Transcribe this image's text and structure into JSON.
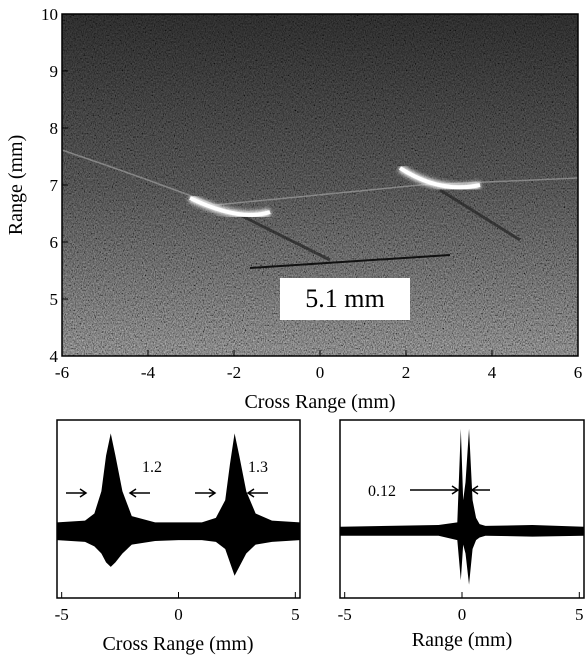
{
  "chart_data": [
    {
      "type": "image",
      "xlabel": "Cross Range (mm)",
      "ylabel": "Range (mm)",
      "annotation": "5.1 mm",
      "xlim": [
        -6,
        6
      ],
      "ylim": [
        4,
        10
      ],
      "xticks": [
        -6,
        -4,
        -2,
        0,
        2,
        4,
        6
      ],
      "yticks": [
        4,
        5,
        6,
        7,
        8,
        9,
        10
      ]
    },
    {
      "type": "envelope",
      "xlabel": "Cross Range (mm)",
      "annotations": [
        "1.2",
        "1.3"
      ],
      "xlim": [
        -5.2,
        5.2
      ],
      "ylim": [
        -1,
        1
      ],
      "xticks": [
        -5,
        0,
        5
      ],
      "x": [
        -5.2,
        -4,
        -3.6,
        -3.3,
        -3.1,
        -2.9,
        -2.7,
        -2.4,
        -2,
        -1,
        0,
        1,
        1.6,
        2,
        2.2,
        2.4,
        2.6,
        2.9,
        3.3,
        4,
        5.2
      ],
      "series": [
        {
          "values": [
            -0.15,
            -0.13,
            -0.05,
            0.2,
            0.6,
            0.85,
            0.6,
            0.2,
            -0.08,
            -0.15,
            -0.15,
            -0.15,
            -0.1,
            0.1,
            0.5,
            0.85,
            0.6,
            0.2,
            -0.05,
            -0.13,
            -0.15
          ]
        },
        {
          "values": [
            -0.35,
            -0.37,
            -0.42,
            -0.5,
            -0.6,
            -0.65,
            -0.6,
            -0.5,
            -0.4,
            -0.36,
            -0.35,
            -0.35,
            -0.37,
            -0.45,
            -0.6,
            -0.75,
            -0.65,
            -0.5,
            -0.4,
            -0.37,
            -0.35
          ]
        }
      ],
      "color": "#000000"
    },
    {
      "type": "envelope",
      "xlabel": "Range (mm)",
      "annotations": [
        "0.12"
      ],
      "xlim": [
        -5.2,
        5.2
      ],
      "ylim": [
        -1,
        1
      ],
      "xticks": [
        -5,
        0,
        5
      ],
      "x": [
        -5.2,
        -1,
        -0.2,
        -0.05,
        0.05,
        0.15,
        0.3,
        0.45,
        0.6,
        0.75,
        1,
        3,
        5.2
      ],
      "series": [
        {
          "values": [
            -0.2,
            -0.18,
            -0.15,
            0.9,
            0.1,
            0.3,
            0.9,
            0.1,
            -0.1,
            -0.17,
            -0.19,
            -0.18,
            -0.2
          ]
        },
        {
          "values": [
            -0.3,
            -0.3,
            -0.35,
            -0.8,
            -0.4,
            -0.5,
            -0.85,
            -0.45,
            -0.35,
            -0.32,
            -0.3,
            -0.31,
            -0.3
          ]
        }
      ],
      "color": "#000000"
    }
  ]
}
